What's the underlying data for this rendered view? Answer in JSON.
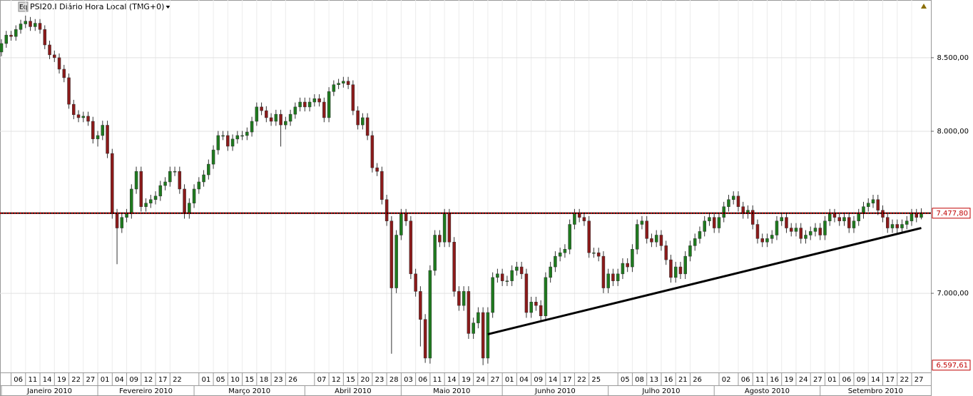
{
  "header": {
    "icon": "Eq",
    "title": "PSI20.I Diário Hora Local (TMG+0)"
  },
  "chart_data": {
    "type": "candlestick",
    "log_scale": true,
    "grid": true,
    "ylim": [
      6558,
      8914
    ],
    "yticks": [
      {
        "value": 7000,
        "label": "7.000,00"
      },
      {
        "value": 8000,
        "label": "8.000,00"
      },
      {
        "value": 8500,
        "label": "8.500,00"
      }
    ],
    "xlim": [
      -0.3,
      193
    ],
    "xticks": [
      {
        "value": 2,
        "label": "06"
      },
      {
        "value": 5,
        "label": "11"
      },
      {
        "value": 8,
        "label": "14"
      },
      {
        "value": 11,
        "label": "19"
      },
      {
        "value": 14,
        "label": "22"
      },
      {
        "value": 17,
        "label": "27"
      },
      {
        "value": 20,
        "label": "01"
      },
      {
        "value": 23,
        "label": "04"
      },
      {
        "value": 26,
        "label": "09"
      },
      {
        "value": 29,
        "label": "12"
      },
      {
        "value": 32,
        "label": "17"
      },
      {
        "value": 35,
        "label": "22"
      },
      {
        "value": 41,
        "label": "01"
      },
      {
        "value": 44,
        "label": "05"
      },
      {
        "value": 47,
        "label": "10"
      },
      {
        "value": 50,
        "label": "15"
      },
      {
        "value": 53,
        "label": "18"
      },
      {
        "value": 56,
        "label": "23"
      },
      {
        "value": 59,
        "label": "26"
      },
      {
        "value": 65,
        "label": "07"
      },
      {
        "value": 68,
        "label": "12"
      },
      {
        "value": 71,
        "label": "15"
      },
      {
        "value": 74,
        "label": "20"
      },
      {
        "value": 77,
        "label": "23"
      },
      {
        "value": 80,
        "label": "28"
      },
      {
        "value": 83,
        "label": "03"
      },
      {
        "value": 86,
        "label": "06"
      },
      {
        "value": 89,
        "label": "11"
      },
      {
        "value": 92,
        "label": "14"
      },
      {
        "value": 95,
        "label": "19"
      },
      {
        "value": 98,
        "label": "24"
      },
      {
        "value": 101,
        "label": "27"
      },
      {
        "value": 104,
        "label": "01"
      },
      {
        "value": 107,
        "label": "04"
      },
      {
        "value": 110,
        "label": "09"
      },
      {
        "value": 113,
        "label": "14"
      },
      {
        "value": 116,
        "label": "17"
      },
      {
        "value": 119,
        "label": "22"
      },
      {
        "value": 122,
        "label": "25"
      },
      {
        "value": 128,
        "label": "05"
      },
      {
        "value": 131,
        "label": "08"
      },
      {
        "value": 134,
        "label": "13"
      },
      {
        "value": 137,
        "label": "16"
      },
      {
        "value": 140,
        "label": "21"
      },
      {
        "value": 143,
        "label": "26"
      },
      {
        "value": 149,
        "label": "02"
      },
      {
        "value": 153,
        "label": "06"
      },
      {
        "value": 156,
        "label": "11"
      },
      {
        "value": 159,
        "label": "16"
      },
      {
        "value": 162,
        "label": "19"
      },
      {
        "value": 165,
        "label": "24"
      },
      {
        "value": 168,
        "label": "27"
      },
      {
        "value": 171,
        "label": "01"
      },
      {
        "value": 174,
        "label": "06"
      },
      {
        "value": 177,
        "label": "09"
      },
      {
        "value": 180,
        "label": "14"
      },
      {
        "value": 183,
        "label": "17"
      },
      {
        "value": 186,
        "label": "22"
      },
      {
        "value": 189,
        "label": "27"
      }
    ],
    "months": [
      {
        "value": 0,
        "label": "Janeiro 2010"
      },
      {
        "value": 20,
        "label": "Fevereiro 2010"
      },
      {
        "value": 40,
        "label": "Março 2010"
      },
      {
        "value": 63,
        "label": "Abril 2010"
      },
      {
        "value": 83,
        "label": "Maio 2010"
      },
      {
        "value": 104,
        "label": "Junho 2010"
      },
      {
        "value": 126,
        "label": "Julho 2010"
      },
      {
        "value": 148,
        "label": "Agosto 2010"
      },
      {
        "value": 170,
        "label": "Setembro 2010"
      }
    ],
    "up_color": "#1e7a1e",
    "down_color": "#8b1a1a",
    "open": [
      8540,
      8600,
      8660,
      8650,
      8700,
      8740,
      8760,
      8720,
      8745,
      8700,
      8590,
      8520,
      8500,
      8420,
      8361,
      8180,
      8110,
      8090,
      8100,
      8066,
      7950,
      7972,
      8040,
      7855,
      7474,
      7387,
      7452,
      7474,
      7628,
      7740,
      7518,
      7540,
      7562,
      7584,
      7650,
      7673,
      7740,
      7740,
      7628,
      7474,
      7540,
      7628,
      7673,
      7718,
      7786,
      7878,
      7972,
      7972,
      7902,
      7949,
      7972,
      7972,
      7995,
      8066,
      8162,
      8137,
      8090,
      8066,
      8113,
      8042,
      8066,
      8113,
      8162,
      8195,
      8162,
      8195,
      8218,
      8195,
      8090,
      8266,
      8313,
      8323,
      8337,
      8313,
      8137,
      8042,
      8090,
      7972,
      7763,
      7740,
      7562,
      7430,
      7031,
      7344,
      7474,
      7430,
      7113,
      7011,
      6851,
      6636,
      7133,
      7344,
      7302,
      7474,
      7302,
      7011,
      6930,
      7011,
      6772,
      6831,
      6890,
      6636,
      6890,
      7092,
      7113,
      7072,
      7072,
      7133,
      7154,
      7113,
      6890,
      6950,
      6930,
      6871,
      7092,
      7154,
      7217,
      7238,
      7259,
      7409,
      7474,
      7452,
      7430,
      7238,
      7238,
      7217,
      7031,
      7113,
      7072,
      7113,
      7175,
      7154,
      7259,
      7409,
      7430,
      7323,
      7302,
      7344,
      7280,
      7196,
      7092,
      7154,
      7113,
      7217,
      7280,
      7323,
      7366,
      7430,
      7452,
      7387,
      7452,
      7518,
      7562,
      7584,
      7518,
      7474,
      7496,
      7409,
      7323,
      7302,
      7323,
      7344,
      7430,
      7452,
      7387,
      7366,
      7387,
      7323,
      7344,
      7366,
      7387,
      7344,
      7430,
      7474,
      7452,
      7430,
      7452,
      7387,
      7430,
      7474,
      7518,
      7540,
      7562,
      7496,
      7452,
      7387,
      7409,
      7387,
      7409,
      7430,
      7474,
      7452
    ],
    "high": [
      8630,
      8690,
      8690,
      8730,
      8770,
      8800,
      8790,
      8775,
      8775,
      8730,
      8620,
      8550,
      8530,
      8450,
      8390,
      8210,
      8140,
      8130,
      8130,
      8096,
      8002,
      8070,
      8070,
      7885,
      7504,
      7482,
      7504,
      7658,
      7770,
      7770,
      7570,
      7592,
      7614,
      7680,
      7703,
      7770,
      7770,
      7770,
      7658,
      7570,
      7658,
      7703,
      7748,
      7816,
      7908,
      8002,
      8002,
      8002,
      7979,
      8002,
      8002,
      8025,
      8096,
      8192,
      8192,
      8167,
      8120,
      8143,
      8143,
      8096,
      8143,
      8192,
      8225,
      8225,
      8225,
      8248,
      8248,
      8225,
      8296,
      8343,
      8353,
      8367,
      8367,
      8343,
      8167,
      8120,
      8120,
      8002,
      7793,
      7770,
      7592,
      7460,
      7374,
      7504,
      7504,
      7460,
      7143,
      7041,
      6881,
      7163,
      7374,
      7374,
      7504,
      7504,
      7332,
      7041,
      7041,
      7041,
      6861,
      6920,
      6920,
      6920,
      7122,
      7143,
      7143,
      7102,
      7163,
      7184,
      7184,
      7143,
      6980,
      6980,
      6960,
      7122,
      7184,
      7247,
      7268,
      7289,
      7439,
      7504,
      7504,
      7482,
      7460,
      7268,
      7268,
      7247,
      7143,
      7143,
      7143,
      7205,
      7205,
      7289,
      7439,
      7460,
      7460,
      7353,
      7374,
      7374,
      7310,
      7226,
      7184,
      7184,
      7247,
      7310,
      7353,
      7396,
      7460,
      7482,
      7482,
      7482,
      7548,
      7592,
      7614,
      7614,
      7548,
      7526,
      7526,
      7439,
      7353,
      7353,
      7374,
      7460,
      7482,
      7482,
      7417,
      7417,
      7417,
      7374,
      7396,
      7417,
      7417,
      7460,
      7504,
      7504,
      7482,
      7482,
      7482,
      7460,
      7504,
      7548,
      7570,
      7592,
      7592,
      7526,
      7482,
      7439,
      7439,
      7439,
      7460,
      7504,
      7504,
      7508
    ],
    "low": [
      8510,
      8570,
      8620,
      8620,
      8670,
      8710,
      8690,
      8690,
      8670,
      8560,
      8490,
      8470,
      8390,
      8330,
      8150,
      8080,
      8060,
      8060,
      8036,
      7920,
      7900,
      7942,
      7825,
      7444,
      7170,
      7357,
      7422,
      7444,
      7598,
      7488,
      7488,
      7510,
      7532,
      7554,
      7620,
      7643,
      7710,
      7598,
      7444,
      7444,
      7510,
      7598,
      7643,
      7688,
      7756,
      7848,
      7942,
      7872,
      7872,
      7919,
      7942,
      7942,
      7965,
      8036,
      8107,
      8060,
      8036,
      8036,
      7900,
      8012,
      8036,
      8083,
      8132,
      8132,
      8132,
      8165,
      8165,
      8060,
      8060,
      8236,
      8283,
      8293,
      8283,
      8107,
      8012,
      8012,
      7942,
      7733,
      7710,
      7532,
      7400,
      6660,
      7001,
      7314,
      7400,
      7083,
      6981,
      6700,
      6610,
      6606,
      7103,
      7272,
      7272,
      7272,
      6981,
      6900,
      6900,
      6742,
      6742,
      6801,
      6597.61,
      6606,
      6860,
      7062,
      7042,
      7042,
      7042,
      7103,
      7083,
      6860,
      6860,
      6900,
      6841,
      6841,
      7062,
      7124,
      7187,
      7208,
      7229,
      7379,
      7422,
      7400,
      7208,
      7208,
      7187,
      7001,
      7001,
      7042,
      7042,
      7083,
      7124,
      7124,
      7229,
      7379,
      7293,
      7272,
      7272,
      7250,
      7166,
      7062,
      7062,
      7083,
      7083,
      7187,
      7250,
      7293,
      7336,
      7400,
      7357,
      7357,
      7422,
      7488,
      7532,
      7488,
      7444,
      7444,
      7379,
      7293,
      7272,
      7272,
      7293,
      7314,
      7400,
      7357,
      7336,
      7336,
      7293,
      7293,
      7314,
      7336,
      7314,
      7314,
      7400,
      7422,
      7400,
      7400,
      7357,
      7357,
      7400,
      7444,
      7488,
      7510,
      7466,
      7422,
      7357,
      7357,
      7357,
      7357,
      7379,
      7400,
      7422,
      7440
    ],
    "close": [
      8600,
      8660,
      8650,
      8700,
      8740,
      8760,
      8720,
      8745,
      8700,
      8590,
      8520,
      8500,
      8420,
      8361,
      8180,
      8110,
      8090,
      8100,
      8066,
      7950,
      7972,
      8040,
      7855,
      7474,
      7387,
      7452,
      7474,
      7628,
      7740,
      7518,
      7540,
      7562,
      7584,
      7650,
      7673,
      7740,
      7740,
      7628,
      7474,
      7540,
      7628,
      7673,
      7718,
      7786,
      7878,
      7972,
      7972,
      7902,
      7949,
      7972,
      7972,
      7995,
      8066,
      8162,
      8137,
      8090,
      8066,
      8113,
      8042,
      8066,
      8113,
      8162,
      8195,
      8162,
      8195,
      8218,
      8195,
      8090,
      8266,
      8313,
      8323,
      8337,
      8313,
      8137,
      8042,
      8090,
      7972,
      7763,
      7740,
      7562,
      7430,
      7031,
      7344,
      7474,
      7430,
      7113,
      7011,
      6851,
      6636,
      7133,
      7344,
      7302,
      7474,
      7302,
      7011,
      6930,
      7011,
      6772,
      6831,
      6890,
      6636,
      6890,
      7092,
      7113,
      7072,
      7072,
      7133,
      7154,
      7113,
      6890,
      6950,
      6930,
      6871,
      7092,
      7154,
      7217,
      7238,
      7259,
      7409,
      7474,
      7452,
      7430,
      7238,
      7238,
      7217,
      7031,
      7113,
      7072,
      7113,
      7175,
      7154,
      7259,
      7409,
      7430,
      7323,
      7302,
      7344,
      7280,
      7196,
      7092,
      7154,
      7113,
      7217,
      7280,
      7323,
      7366,
      7430,
      7452,
      7387,
      7452,
      7518,
      7562,
      7584,
      7518,
      7474,
      7496,
      7409,
      7323,
      7302,
      7323,
      7344,
      7430,
      7452,
      7387,
      7366,
      7387,
      7323,
      7344,
      7366,
      7387,
      7344,
      7430,
      7474,
      7452,
      7430,
      7452,
      7387,
      7430,
      7474,
      7518,
      7540,
      7562,
      7496,
      7452,
      7387,
      7409,
      7387,
      7409,
      7430,
      7474,
      7452,
      7477.8
    ],
    "markers": [
      {
        "value": 7477.8,
        "label": "7.477,80",
        "color": "#c00000"
      },
      {
        "value": 6597.61,
        "label": "6.597,61",
        "color": "#c00000"
      }
    ],
    "trendline": {
      "x": [
        101,
        191
      ],
      "y": [
        6768,
        7387
      ]
    }
  }
}
